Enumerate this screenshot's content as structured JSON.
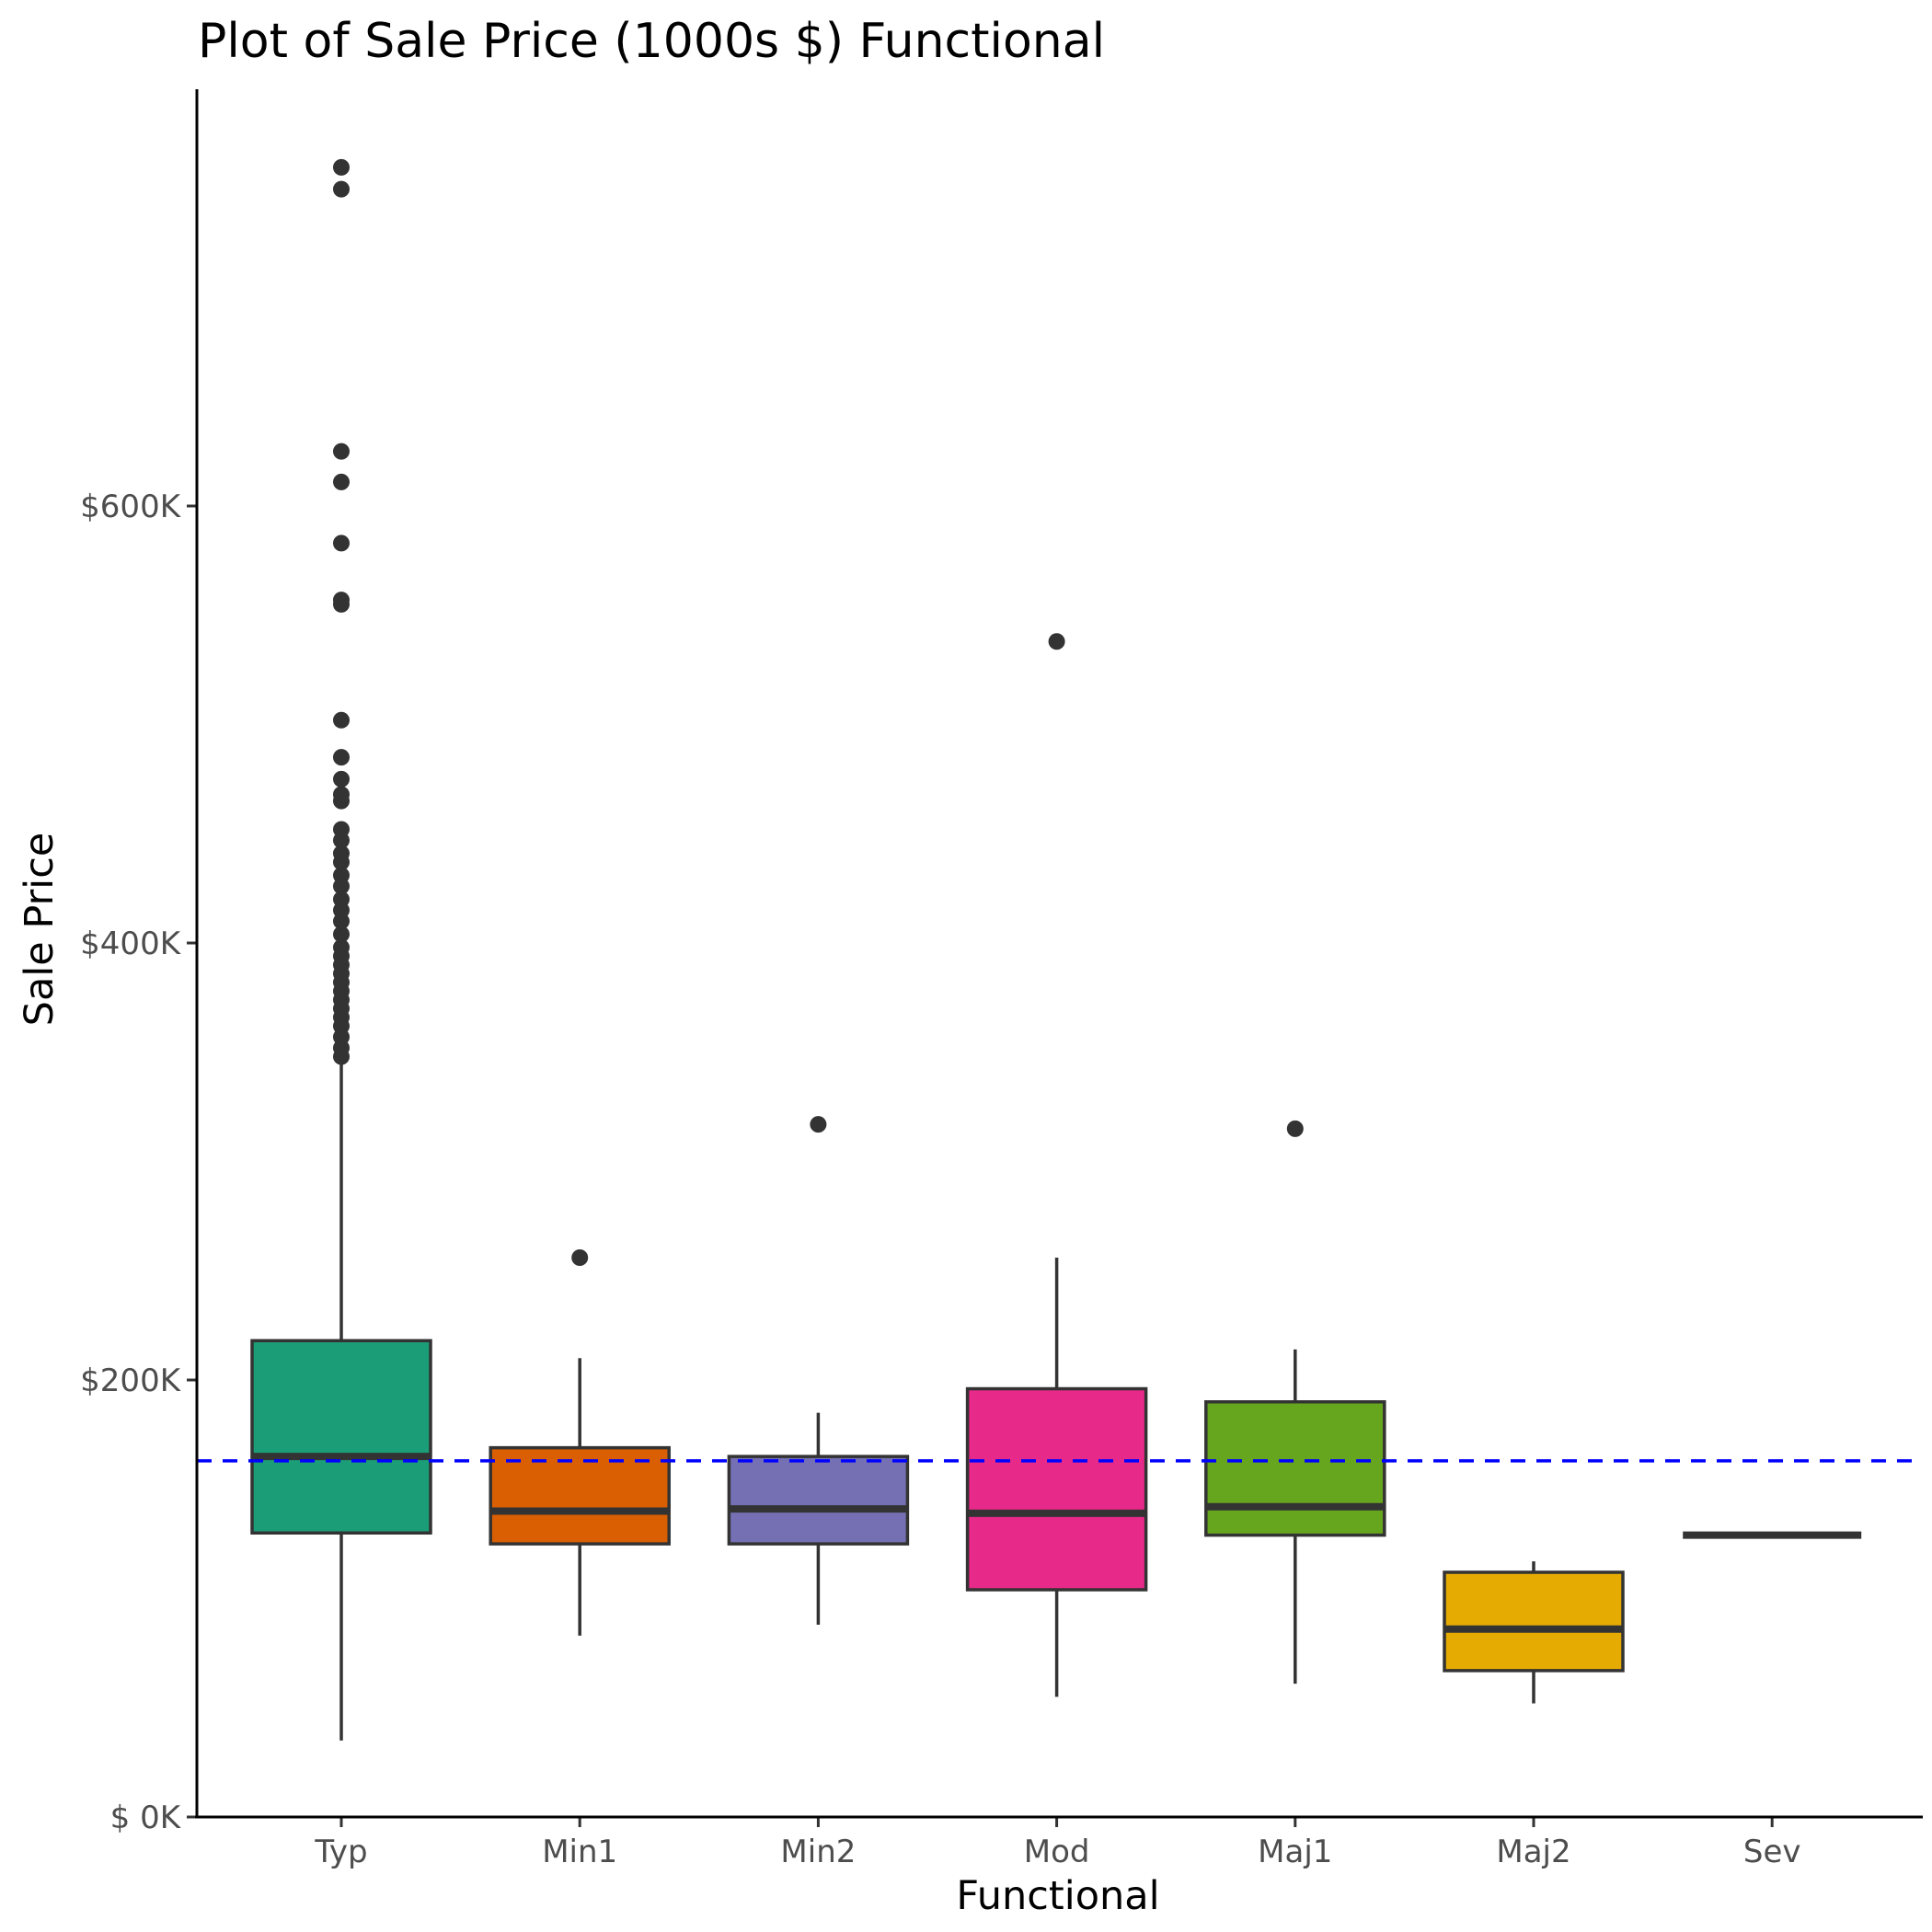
{
  "chart_data": {
    "type": "box",
    "title": "Plot of Sale Price (1000s $) Functional",
    "xlabel": "Functional",
    "ylabel": "Sale Price",
    "ylim": [
      0,
      755
    ],
    "y_ticks": [
      {
        "value": 0,
        "label": "$  0K"
      },
      {
        "value": 200,
        "label": "$200K"
      },
      {
        "value": 400,
        "label": "$400K"
      },
      {
        "value": 600,
        "label": "$600K"
      }
    ],
    "grid": false,
    "legend": "none",
    "reference_line": {
      "value": 163,
      "color": "#0000ff",
      "style": "dashed"
    },
    "categories": [
      "Typ",
      "Min1",
      "Min2",
      "Mod",
      "Maj1",
      "Maj2",
      "Sev"
    ],
    "boxes": [
      {
        "category": "Typ",
        "color": "#1b9e77",
        "whisker_low": 35,
        "q1": 130,
        "median": 165,
        "q3": 218,
        "whisker_high": 347,
        "outliers": [
          348,
          352,
          357,
          362,
          366,
          370,
          374,
          378,
          382,
          386,
          390,
          394,
          398,
          404,
          410,
          415,
          420,
          426,
          431,
          437,
          441,
          447,
          452,
          465,
          468,
          475,
          485,
          502,
          555,
          557,
          583,
          611,
          625,
          745,
          755
        ]
      },
      {
        "category": "Min1",
        "color": "#d95f02",
        "whisker_low": 83,
        "q1": 125,
        "median": 140,
        "q3": 169,
        "whisker_high": 210,
        "outliers": [
          256
        ]
      },
      {
        "category": "Min2",
        "color": "#7570b3",
        "whisker_low": 88,
        "q1": 125,
        "median": 141,
        "q3": 165,
        "whisker_high": 185,
        "outliers": [
          317
        ]
      },
      {
        "category": "Mod",
        "color": "#e7298a",
        "whisker_low": 55,
        "q1": 104,
        "median": 139,
        "q3": 196,
        "whisker_high": 256,
        "outliers": [
          538
        ]
      },
      {
        "category": "Maj1",
        "color": "#66a61e",
        "whisker_low": 61,
        "q1": 129,
        "median": 142,
        "q3": 190,
        "whisker_high": 214,
        "outliers": [
          315
        ]
      },
      {
        "category": "Maj2",
        "color": "#e6ab02",
        "whisker_low": 52,
        "q1": 67,
        "median": 86,
        "q3": 112,
        "whisker_high": 117,
        "outliers": []
      },
      {
        "category": "Sev",
        "color": "#333333",
        "whisker_low": 129,
        "q1": 129,
        "median": 129,
        "q3": 129,
        "whisker_high": 129,
        "outliers": []
      }
    ]
  }
}
